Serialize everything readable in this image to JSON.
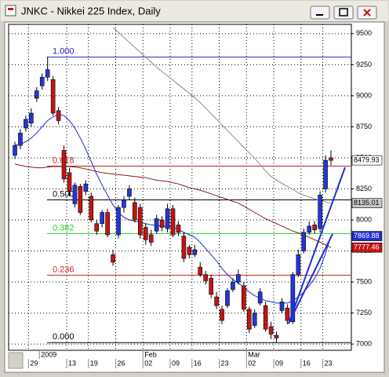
{
  "chart_data": {
    "type": "candlestick",
    "title": "JNKC - Nikkei 225 Index, Daily",
    "categories": [
      null,
      null,
      null,
      "29",
      null,
      null,
      null,
      null,
      null,
      null,
      "13",
      null,
      null,
      null,
      "19",
      null,
      null,
      null,
      null,
      "26",
      null,
      null,
      null,
      null,
      "02",
      null,
      null,
      null,
      null,
      "09",
      null,
      null,
      null,
      "16",
      null,
      null,
      null,
      null,
      "23",
      null,
      null,
      null,
      null,
      "02",
      null,
      null,
      null,
      null,
      "09",
      null,
      null,
      null,
      null,
      "16",
      null,
      null,
      null,
      "23",
      null
    ],
    "period_labels": [
      null,
      null,
      null,
      null,
      null,
      "2009",
      null,
      null,
      null,
      null,
      null,
      null,
      null,
      null,
      null,
      null,
      null,
      null,
      null,
      null,
      null,
      null,
      null,
      null,
      "Feb",
      null,
      null,
      null,
      null,
      null,
      null,
      null,
      null,
      null,
      null,
      null,
      null,
      null,
      null,
      null,
      null,
      null,
      null,
      "Mar",
      null,
      null,
      null,
      null,
      null,
      null,
      null,
      null,
      null,
      null,
      null,
      null,
      null,
      null,
      null
    ],
    "open": [
      8520,
      8600,
      8740,
      8780,
      8980,
      9080,
      9150,
      9130,
      8880,
      8560,
      8380,
      8130,
      8270,
      8230,
      8190,
      7970,
      7970,
      8060,
      7720,
      7880,
      8100,
      8190,
      8140,
      8100,
      7940,
      7880,
      7910,
      8000,
      7930,
      8090,
      7960,
      7870,
      7780,
      7720,
      7620,
      7560,
      7530,
      7380,
      7280,
      7310,
      7440,
      7500,
      7470,
      7280,
      7150,
      7330,
      7310,
      7140,
      7070,
      7270,
      7290,
      7180,
      7560,
      7750,
      7900,
      7960,
      7930,
      8250,
      8500
    ],
    "high": [
      8630,
      8730,
      8840,
      8900,
      9070,
      9180,
      9311,
      9160,
      8910,
      8600,
      8420,
      8300,
      8290,
      8320,
      8220,
      8000,
      8080,
      8090,
      7760,
      8120,
      8190,
      8280,
      8180,
      8130,
      7970,
      7920,
      8040,
      8030,
      8130,
      8120,
      7990,
      7900,
      7800,
      7800,
      7660,
      7590,
      7560,
      7420,
      7310,
      7450,
      7530,
      7600,
      7500,
      7300,
      7280,
      7450,
      7340,
      7180,
      7100,
      7370,
      7320,
      7580,
      7760,
      7930,
      7990,
      7990,
      8230,
      8520,
      8560
    ],
    "low": [
      8490,
      8570,
      8710,
      8750,
      8950,
      9050,
      9120,
      8840,
      8770,
      8300,
      8190,
      8100,
      8040,
      8200,
      7980,
      7880,
      7940,
      7860,
      7630,
      7850,
      8060,
      8160,
      7980,
      7850,
      7800,
      7790,
      7890,
      7910,
      7900,
      7860,
      7870,
      7660,
      7690,
      7700,
      7540,
      7480,
      7370,
      7280,
      7160,
      7290,
      7420,
      7480,
      7260,
      7090,
      7130,
      7310,
      7100,
      7040,
      7012,
      7250,
      7160,
      7160,
      7540,
      7730,
      7880,
      7890,
      7900,
      8220,
      8440
    ],
    "close": [
      8600,
      8700,
      8810,
      8860,
      9040,
      9150,
      9210,
      8860,
      8800,
      8330,
      8230,
      8280,
      8060,
      8290,
      8000,
      7910,
      8060,
      7880,
      7660,
      8100,
      8160,
      8250,
      8000,
      7880,
      7840,
      7820,
      8010,
      7940,
      8090,
      7880,
      7900,
      7690,
      7720,
      7760,
      7560,
      7510,
      7400,
      7310,
      7190,
      7430,
      7500,
      7560,
      7280,
      7120,
      7250,
      7420,
      7120,
      7080,
      7050,
      7340,
      7190,
      7560,
      7720,
      7900,
      7950,
      7920,
      8200,
      8480,
      8479.93
    ],
    "up_color": "#2436d8",
    "down_color": "#c41414",
    "moving_averages": [
      {
        "color": "#2030d0",
        "values": [
          8600,
          8610,
          8630,
          8660,
          8700,
          8750,
          8800,
          8830,
          8850,
          8840,
          8800,
          8740,
          8660,
          8570,
          8470,
          8370,
          8280,
          8200,
          8120,
          8060,
          8020,
          8000,
          7990,
          7980,
          7970,
          7960,
          7955,
          7950,
          7950,
          7940,
          7925,
          7900,
          7880,
          7860,
          7820,
          7770,
          7720,
          7670,
          7610,
          7560,
          7520,
          7490,
          7460,
          7420,
          7390,
          7370,
          7350,
          7340,
          7330,
          7330,
          7330,
          7350,
          7380,
          7420,
          7470,
          7530,
          7610,
          7730,
          7869.88
        ]
      },
      {
        "color": "#8a1a1a",
        "values": [
          8450,
          8440,
          8430,
          8425,
          8420,
          8420,
          8425,
          8430,
          8430,
          8430,
          8430,
          8425,
          8420,
          8410,
          8400,
          8390,
          8380,
          8375,
          8370,
          8365,
          8360,
          8355,
          8350,
          8345,
          8340,
          8330,
          8320,
          8315,
          8310,
          8300,
          8290,
          8275,
          8260,
          8250,
          8240,
          8225,
          8210,
          8195,
          8180,
          8165,
          8150,
          8135,
          8110,
          8085,
          8060,
          8035,
          8010,
          7990,
          7970,
          7950,
          7930,
          7910,
          7895,
          7880,
          7860,
          7840,
          7820,
          7800,
          7777.46
        ]
      },
      {
        "color": "#8c8c8c",
        "values": [
          null,
          null,
          null,
          null,
          null,
          null,
          null,
          null,
          null,
          null,
          null,
          null,
          null,
          null,
          null,
          null,
          null,
          null,
          9550,
          9510,
          9470,
          9430,
          9390,
          9350,
          9310,
          9270,
          9230,
          9195,
          9160,
          9125,
          9090,
          9055,
          9020,
          8985,
          8945,
          8900,
          8855,
          8810,
          8765,
          8720,
          8675,
          8630,
          8585,
          8540,
          8495,
          8445,
          8395,
          8350,
          8320,
          8295,
          8270,
          8245,
          8220,
          8200,
          8185,
          8170,
          8155,
          8145,
          8135.01
        ]
      }
    ],
    "ylim": [
      6950,
      9575
    ],
    "yticks": [
      7000,
      7250,
      7500,
      7750,
      8000,
      8250,
      8500,
      8750,
      9000,
      9250,
      9500
    ],
    "grid": true,
    "fibonacci": [
      {
        "ratio": {
          "value": 1,
          "label": "1.000"
        },
        "price": 9311,
        "color": "#2020c0"
      },
      {
        "ratio": {
          "value": 0.618,
          "label": "0.618"
        },
        "price": 8433,
        "color": "#c02020"
      },
      {
        "ratio": {
          "value": 0.5,
          "label": "0.500"
        },
        "price": 8161,
        "color": "#000000"
      },
      {
        "ratio": {
          "value": 0.382,
          "label": "0.382"
        },
        "price": 7890,
        "color": "#20d020"
      },
      {
        "ratio": {
          "value": 0.236,
          "label": "0.236"
        },
        "price": 7555,
        "color": "#d02020"
      },
      {
        "ratio": {
          "value": 0,
          "label": "0.000"
        },
        "price": 7012,
        "color": "#000000"
      }
    ],
    "price_labels": [
      {
        "value": 8479.93,
        "label": "8479.93",
        "fill": "#ffffff",
        "text_color": "#000000"
      },
      {
        "value": 8135.01,
        "label": "8135.01",
        "fill": "#c8c8c8",
        "text_color": "#000000"
      },
      {
        "value": 7869.88,
        "label": "7869.88",
        "fill": "#2030d0",
        "text_color": "#ffffff"
      },
      {
        "value": 7777.46,
        "label": "7777.46",
        "fill": "#c41414",
        "text_color": "#ffffff"
      }
    ]
  }
}
